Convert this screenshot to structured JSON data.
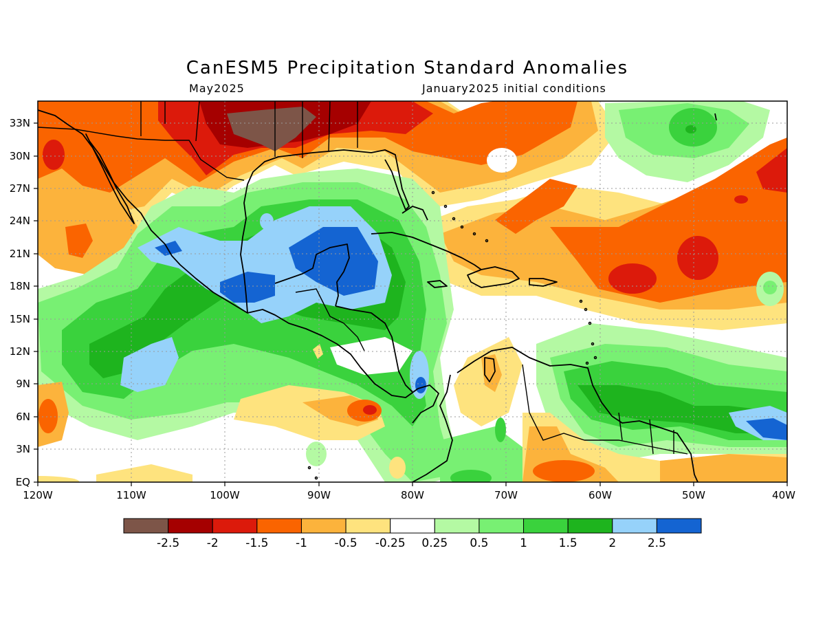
{
  "title": "CanESM5 Precipitation Standard Anomalies",
  "valid_month": "May2025",
  "init_text": "January2025 initial conditions",
  "map": {
    "lon_labels": [
      "120W",
      "110W",
      "100W",
      "90W",
      "80W",
      "70W",
      "60W",
      "50W",
      "40W"
    ],
    "lat_labels": [
      "EQ",
      "3N",
      "6N",
      "9N",
      "12N",
      "15N",
      "18N",
      "21N",
      "24N",
      "27N",
      "30N",
      "33N"
    ]
  },
  "colorbar": {
    "colors": [
      "#7d5548",
      "#a50000",
      "#dc1a0b",
      "#fa6400",
      "#fcb33c",
      "#fee37e",
      "#ffffff",
      "#b4f9a3",
      "#78f073",
      "#3ad23d",
      "#1eb41e",
      "#96d2fa",
      "#1464d2"
    ],
    "labels": [
      "-2.5",
      "-2",
      "-1.5",
      "-1",
      "-0.5",
      "-0.25",
      "0.25",
      "0.5",
      "1",
      "1.5",
      "2",
      "2.5"
    ]
  }
}
